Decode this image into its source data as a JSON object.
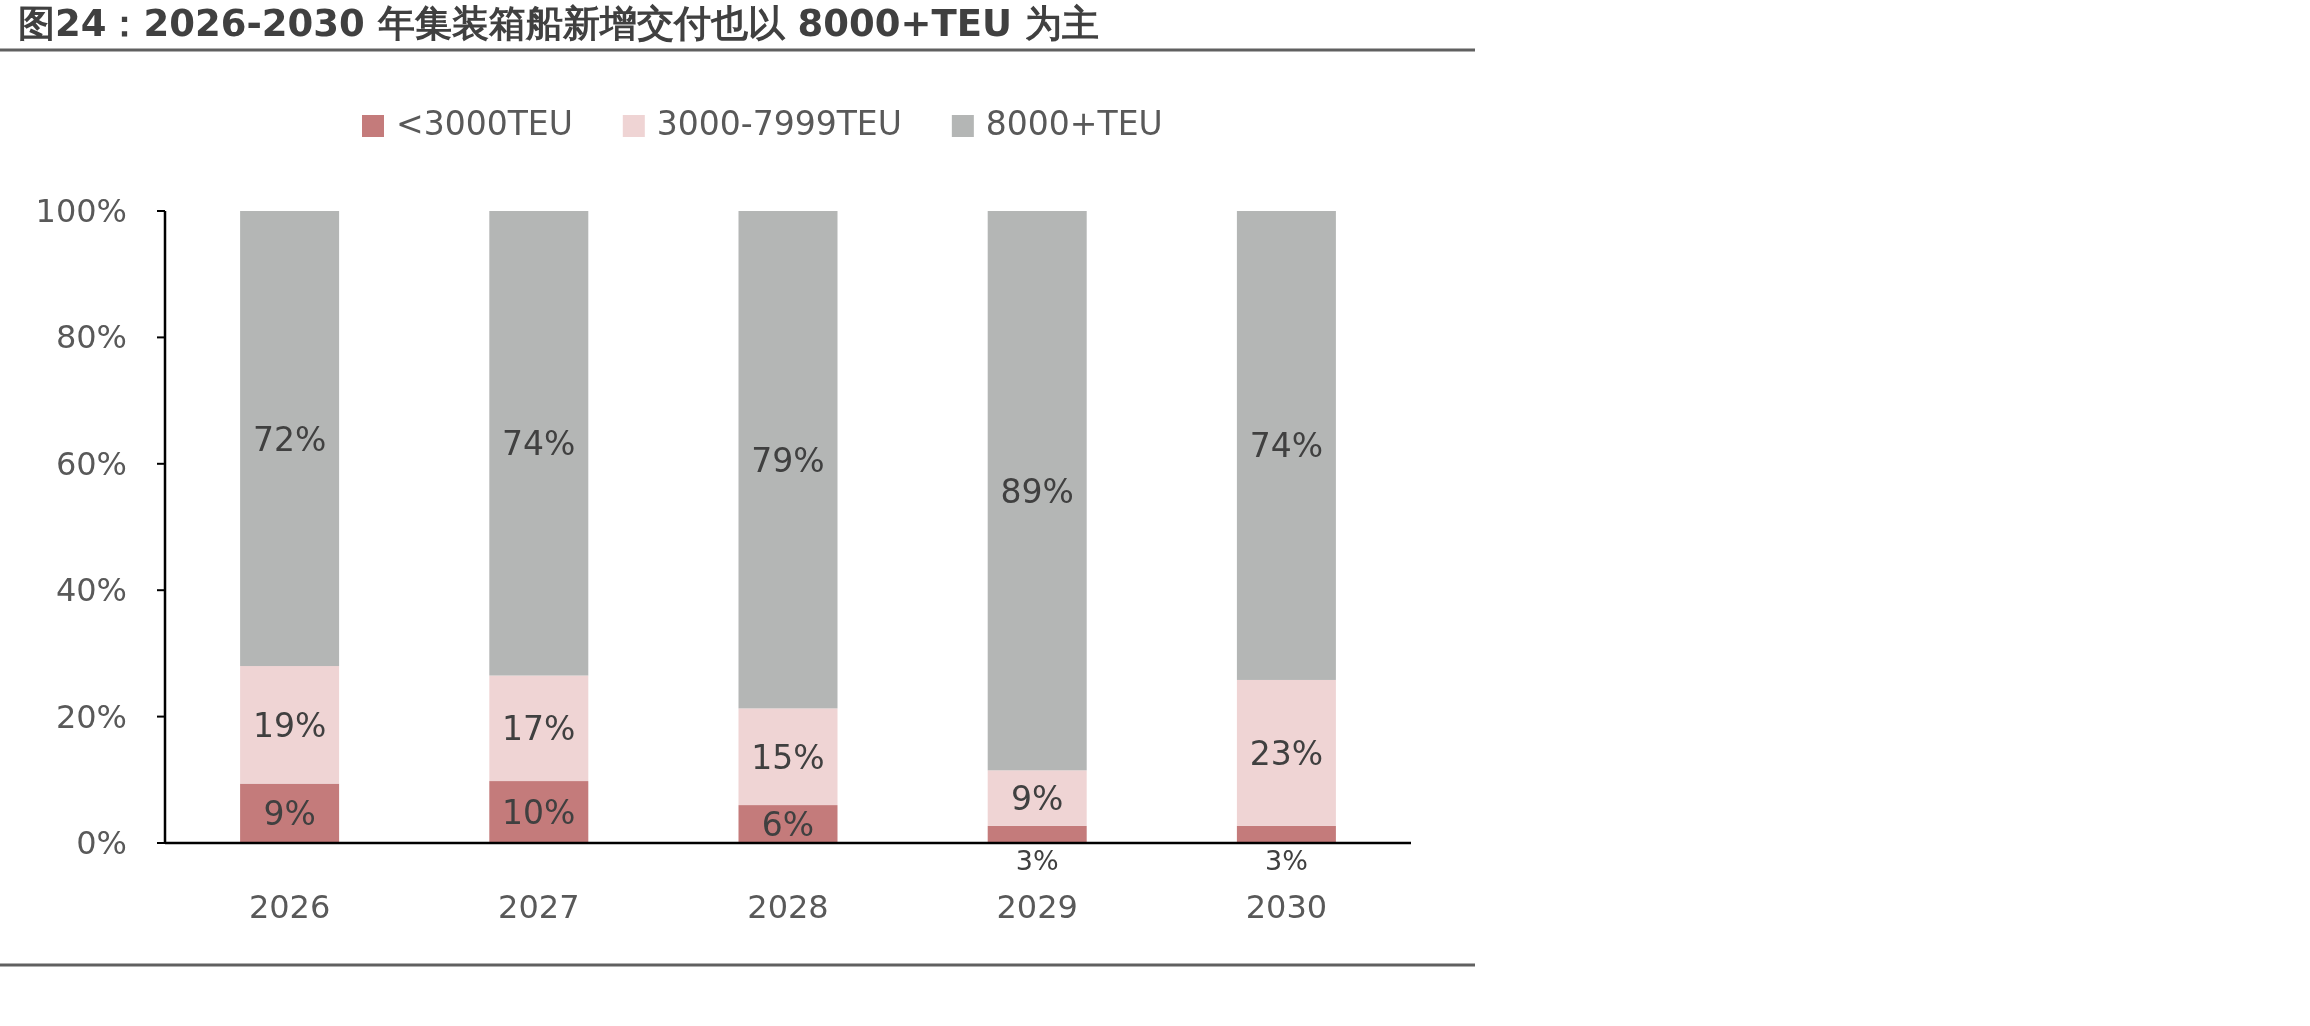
{
  "chart_data": {
    "type": "bar",
    "title": "图24：2026-2030 年集装箱船新增交付也以 8000+TEU 为主",
    "categories": [
      "2026",
      "2027",
      "2028",
      "2029",
      "2030"
    ],
    "stacked": true,
    "legend": "top",
    "ylim": [
      0,
      100
    ],
    "yticks": [
      {
        "value": 0,
        "label": "0%"
      },
      {
        "value": 20,
        "label": "20%"
      },
      {
        "value": 40,
        "label": "40%"
      },
      {
        "value": 60,
        "label": "60%"
      },
      {
        "value": 80,
        "label": "80%"
      },
      {
        "value": 100,
        "label": "100%"
      }
    ],
    "series": [
      {
        "name": "<3000TEU",
        "color": "#c47b7b",
        "values": [
          9.4,
          9.8,
          6,
          2.7,
          2.7
        ],
        "value_labels": [
          "9%",
          "10%",
          "6%",
          "3%",
          "3%"
        ]
      },
      {
        "name": "3000-7999TEU",
        "color": "#efd4d4",
        "values": [
          18.6,
          16.7,
          15.3,
          8.8,
          23.1
        ],
        "value_labels": [
          "19%",
          "17%",
          "15%",
          "9%",
          "23%"
        ]
      },
      {
        "name": "8000+TEU",
        "color": "#b4b6b5",
        "values": [
          72,
          73.5,
          78.7,
          88.5,
          74.2
        ],
        "value_labels": [
          "72%",
          "74%",
          "79%",
          "89%",
          "74%"
        ]
      }
    ]
  }
}
